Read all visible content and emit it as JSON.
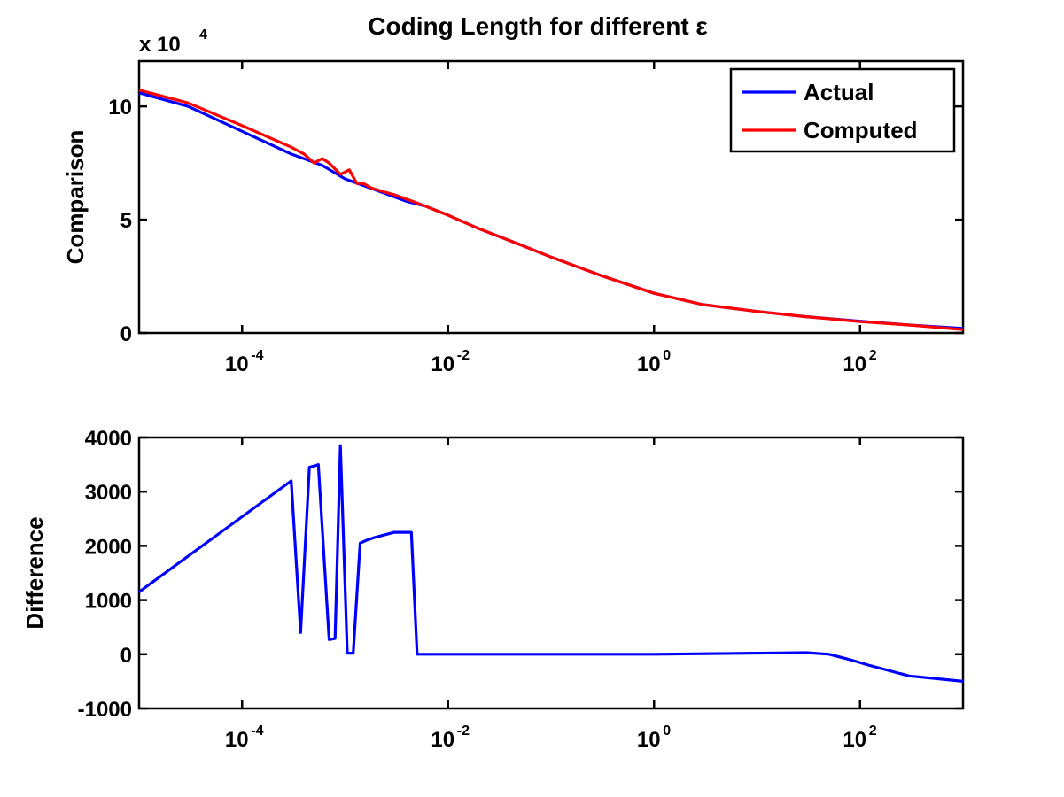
{
  "chart_data": [
    {
      "type": "line",
      "title": "Coding Length for different ε",
      "xlabel": "",
      "ylabel": "Comparison",
      "xscale": "log",
      "xlim": [
        1e-05,
        1000
      ],
      "ylim": [
        0,
        12
      ],
      "y_multiplier": "x 10",
      "y_multiplier_exp": "4",
      "xtick_values": [
        0.0001,
        0.01,
        1,
        100
      ],
      "xtick_base": "10",
      "xtick_exps": [
        "-4",
        "-2",
        "0",
        "2"
      ],
      "yticks": [
        "0",
        "5",
        "10"
      ],
      "ytick_values": [
        0,
        5,
        10
      ],
      "legend": {
        "position": "top-right",
        "entries": [
          "Actual",
          "Computed"
        ]
      },
      "grid": false,
      "series": [
        {
          "name": "Actual",
          "color": "#0000ff",
          "x": [
            1e-05,
            3e-05,
            0.0001,
            0.0003,
            0.0006,
            0.001,
            0.002,
            0.004,
            0.006,
            0.01,
            0.02,
            0.05,
            0.1,
            0.3,
            1,
            3,
            10,
            30,
            100,
            300,
            1000
          ],
          "y": [
            10.6,
            10.0,
            8.9,
            7.9,
            7.4,
            6.8,
            6.3,
            5.8,
            5.6,
            5.2,
            4.6,
            3.9,
            3.35,
            2.55,
            1.75,
            1.25,
            0.95,
            0.72,
            0.52,
            0.35,
            0.2
          ]
        },
        {
          "name": "Computed",
          "color": "#ff0000",
          "x": [
            1e-05,
            3e-05,
            0.0001,
            0.0003,
            0.0004,
            0.0005,
            0.0006,
            0.0007,
            0.0009,
            0.0011,
            0.0013,
            0.0015,
            0.0018,
            0.0023,
            0.003,
            0.004,
            0.0046,
            0.006,
            0.01,
            0.02,
            0.05,
            0.1,
            0.3,
            1,
            3,
            10,
            30,
            100,
            300,
            1000
          ],
          "y": [
            10.72,
            10.15,
            9.15,
            8.2,
            7.9,
            7.5,
            7.7,
            7.5,
            7.0,
            7.2,
            6.6,
            6.6,
            6.4,
            6.25,
            6.1,
            5.9,
            5.8,
            5.6,
            5.2,
            4.6,
            3.9,
            3.35,
            2.55,
            1.75,
            1.25,
            0.95,
            0.72,
            0.5,
            0.35,
            0.15
          ]
        }
      ]
    },
    {
      "type": "line",
      "title": "",
      "xlabel": "",
      "ylabel": "Difference",
      "xscale": "log",
      "xlim": [
        1e-05,
        1000
      ],
      "ylim": [
        -1000,
        4000
      ],
      "xtick_values": [
        0.0001,
        0.01,
        1,
        100
      ],
      "xtick_base": "10",
      "xtick_exps": [
        "-4",
        "-2",
        "0",
        "2"
      ],
      "yticks": [
        "-1000",
        "0",
        "1000",
        "2000",
        "3000",
        "4000"
      ],
      "ytick_values": [
        -1000,
        0,
        1000,
        2000,
        3000,
        4000
      ],
      "grid": false,
      "series": [
        {
          "color": "#0000ff",
          "x": [
            1e-05,
            0.0003,
            0.00037,
            0.00045,
            0.00055,
            0.0007,
            0.0008,
            0.0009,
            0.00105,
            0.0012,
            0.0014,
            0.0016,
            0.0019,
            0.003,
            0.0044,
            0.005,
            0.1,
            1,
            30,
            50,
            80,
            120,
            300,
            1000
          ],
          "y": [
            1150,
            3200,
            400,
            3450,
            3500,
            270,
            290,
            3850,
            20,
            20,
            2050,
            2100,
            2150,
            2250,
            2250,
            0,
            0,
            0,
            30,
            0,
            -100,
            -200,
            -400,
            -500
          ]
        }
      ]
    }
  ]
}
